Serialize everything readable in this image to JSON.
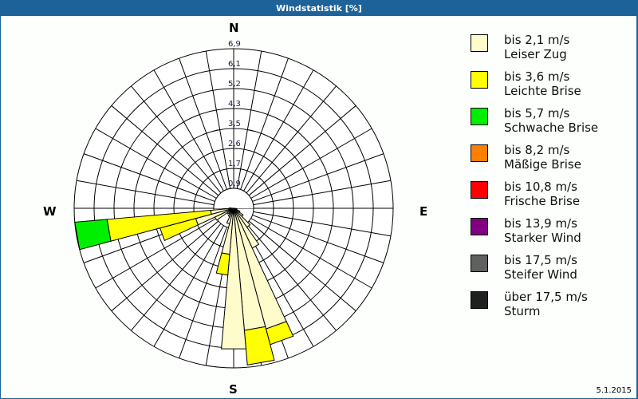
{
  "window": {
    "title": "Windstatistik [%]"
  },
  "compass": {
    "north": "N",
    "east": "E",
    "south": "S",
    "west": "W"
  },
  "footer": {
    "date": "5.1.2015"
  },
  "legend": [
    {
      "range": "bis 2,1 m/s",
      "name": "Leiser Zug",
      "color": "#fffccc"
    },
    {
      "range": "bis 3,6 m/s",
      "name": "Leichte Brise",
      "color": "#ffff00"
    },
    {
      "range": "bis 5,7 m/s",
      "name": "Schwache Brise",
      "color": "#00ee00"
    },
    {
      "range": "bis 8,2 m/s",
      "name": "Mäßige Brise",
      "color": "#ff8000"
    },
    {
      "range": "bis 10,8 m/s",
      "name": "Frische Brise",
      "color": "#ff0000"
    },
    {
      "range": "bis 13,9 m/s",
      "name": "Starker Wind",
      "color": "#800080"
    },
    {
      "range": "bis 17,5 m/s",
      "name": "Steifer Wind",
      "color": "#606060"
    },
    {
      "range": "über 17,5 m/s",
      "name": "Sturm",
      "color": "#202020"
    }
  ],
  "chart_data": {
    "type": "polar-stacked-bar (wind rose)",
    "title": "Windstatistik [%]",
    "unit": "%",
    "sector_width_deg": 10,
    "ring_labels": [
      "0,9",
      "1,7",
      "2,6",
      "3,5",
      "4,3",
      "5,2",
      "6,1",
      "6,9"
    ],
    "ring_values": [
      0.9,
      1.7,
      2.6,
      3.5,
      4.3,
      5.2,
      6.1,
      6.9
    ],
    "rmax": 6.9,
    "series_names": [
      "Leiser Zug",
      "Leichte Brise",
      "Schwache Brise",
      "Mäßige Brise",
      "Frische Brise",
      "Starker Wind",
      "Steifer Wind",
      "Sturm"
    ],
    "sectors": [
      {
        "direction_deg": 100,
        "cumulative": [
          0.1
        ]
      },
      {
        "direction_deg": 110,
        "cumulative": [
          0.15
        ]
      },
      {
        "direction_deg": 120,
        "cumulative": [
          0.3
        ]
      },
      {
        "direction_deg": 130,
        "cumulative": [
          0.5
        ]
      },
      {
        "direction_deg": 140,
        "cumulative": [
          1.0
        ]
      },
      {
        "direction_deg": 150,
        "cumulative": [
          1.9
        ]
      },
      {
        "direction_deg": 160,
        "cumulative": [
          5.4,
          6.1
        ]
      },
      {
        "direction_deg": 170,
        "cumulative": [
          5.3,
          6.8
        ]
      },
      {
        "direction_deg": 180,
        "cumulative": [
          6.1
        ]
      },
      {
        "direction_deg": 190,
        "cumulative": [
          2.0,
          2.9
        ]
      },
      {
        "direction_deg": 200,
        "cumulative": [
          0.7
        ]
      },
      {
        "direction_deg": 210,
        "cumulative": [
          0.4
        ]
      },
      {
        "direction_deg": 220,
        "cumulative": [
          0.3
        ]
      },
      {
        "direction_deg": 230,
        "cumulative": [
          0.35
        ]
      },
      {
        "direction_deg": 240,
        "cumulative": [
          0.9
        ]
      },
      {
        "direction_deg": 250,
        "cumulative": [
          1.7,
          3.3
        ]
      },
      {
        "direction_deg": 260,
        "cumulative": [
          1.0,
          5.5,
          6.9
        ]
      },
      {
        "direction_deg": 270,
        "cumulative": [
          0.2
        ]
      }
    ]
  }
}
